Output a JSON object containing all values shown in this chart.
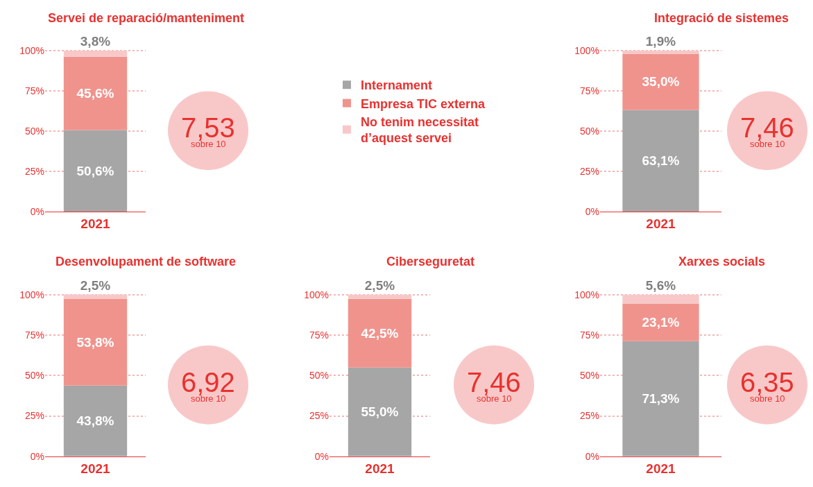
{
  "chart_data": [
    {
      "type": "bar",
      "stacked": true,
      "title": "Servei de reparació/manteniment",
      "categories": [
        "2021"
      ],
      "ylim": [
        0,
        101
      ],
      "yticks": [
        {
          "value": 0,
          "label": "0%"
        },
        {
          "value": 25,
          "label": "25%"
        },
        {
          "value": 50,
          "label": "50%"
        },
        {
          "value": 75,
          "label": "75%"
        },
        {
          "value": 100,
          "label": "100%"
        }
      ],
      "grid": "y",
      "legend": "right",
      "annotations": [
        "7,53",
        "sobre 10"
      ],
      "series": [
        {
          "name": "Internament",
          "color": "#a6a6a6",
          "values": [
            50.6
          ],
          "value_labels": [
            "50,6%"
          ]
        },
        {
          "name": "Empresa TIC externa",
          "color": "#f0938d",
          "values": [
            45.6
          ],
          "value_labels": [
            "45,6%"
          ]
        },
        {
          "name": "No tenim necessitat d’aquest servei",
          "color": "#f8c8c8",
          "values": [
            3.8
          ],
          "value_labels": [
            "3,8%"
          ]
        }
      ]
    },
    {
      "type": "bar",
      "stacked": true,
      "title": "Integració de sistemes",
      "categories": [
        "2021"
      ],
      "ylim": [
        0,
        101
      ],
      "yticks": [
        {
          "value": 0,
          "label": "0%"
        },
        {
          "value": 25,
          "label": "25%"
        },
        {
          "value": 50,
          "label": "50%"
        },
        {
          "value": 75,
          "label": "75%"
        },
        {
          "value": 100,
          "label": "100%"
        }
      ],
      "grid": "y",
      "annotations": [
        "7,46",
        "sobre 10"
      ],
      "series": [
        {
          "color": "#a6a6a6",
          "values": [
            63.1
          ],
          "value_labels": [
            "63,1%"
          ]
        },
        {
          "color": "#f0938d",
          "values": [
            35.0
          ],
          "value_labels": [
            "35,0%"
          ]
        },
        {
          "color": "#f8c8c8",
          "values": [
            1.9
          ],
          "value_labels": [
            "1,9%"
          ]
        }
      ]
    },
    {
      "type": "bar",
      "stacked": true,
      "title": "Desenvolupament de software",
      "categories": [
        "2021"
      ],
      "ylim": [
        0,
        101
      ],
      "yticks": [
        {
          "value": 0,
          "label": "0%"
        },
        {
          "value": 25,
          "label": "25%"
        },
        {
          "value": 50,
          "label": "50%"
        },
        {
          "value": 75,
          "label": "75%"
        },
        {
          "value": 100,
          "label": "100%"
        }
      ],
      "grid": "y",
      "annotations": [
        "6,92",
        "sobre 10"
      ],
      "series": [
        {
          "color": "#a6a6a6",
          "values": [
            43.8
          ],
          "value_labels": [
            "43,8%"
          ]
        },
        {
          "color": "#f0938d",
          "values": [
            53.8
          ],
          "value_labels": [
            "53,8%"
          ]
        },
        {
          "color": "#f8c8c8",
          "values": [
            2.5
          ],
          "value_labels": [
            "2,5%"
          ]
        }
      ]
    },
    {
      "type": "bar",
      "stacked": true,
      "title": "Ciberseguretat",
      "categories": [
        "2021"
      ],
      "ylim": [
        0,
        101
      ],
      "yticks": [
        {
          "value": 0,
          "label": "0%"
        },
        {
          "value": 25,
          "label": "25%"
        },
        {
          "value": 50,
          "label": "50%"
        },
        {
          "value": 75,
          "label": "75%"
        },
        {
          "value": 100,
          "label": "100%"
        }
      ],
      "grid": "y",
      "annotations": [
        "7,46",
        "sobre 10"
      ],
      "series": [
        {
          "color": "#a6a6a6",
          "values": [
            55.0
          ],
          "value_labels": [
            "55,0%"
          ]
        },
        {
          "color": "#f0938d",
          "values": [
            42.5
          ],
          "value_labels": [
            "42,5%"
          ]
        },
        {
          "color": "#f8c8c8",
          "values": [
            2.5
          ],
          "value_labels": [
            "2,5%"
          ]
        }
      ]
    },
    {
      "type": "bar",
      "stacked": true,
      "title": "Xarxes socials",
      "categories": [
        "2021"
      ],
      "ylim": [
        0,
        101
      ],
      "yticks": [
        {
          "value": 0,
          "label": "0%"
        },
        {
          "value": 25,
          "label": "25%"
        },
        {
          "value": 50,
          "label": "50%"
        },
        {
          "value": 75,
          "label": "75%"
        },
        {
          "value": 100,
          "label": "100%"
        }
      ],
      "grid": "y",
      "annotations": [
        "6,35",
        "sobre 10"
      ],
      "series": [
        {
          "color": "#a6a6a6",
          "values": [
            71.3
          ],
          "value_labels": [
            "71,3%"
          ]
        },
        {
          "color": "#f0938d",
          "values": [
            23.1
          ],
          "value_labels": [
            "23,1%"
          ]
        },
        {
          "color": "#f8c8c8",
          "values": [
            5.6
          ],
          "value_labels": [
            "5,6%"
          ]
        }
      ]
    }
  ]
}
